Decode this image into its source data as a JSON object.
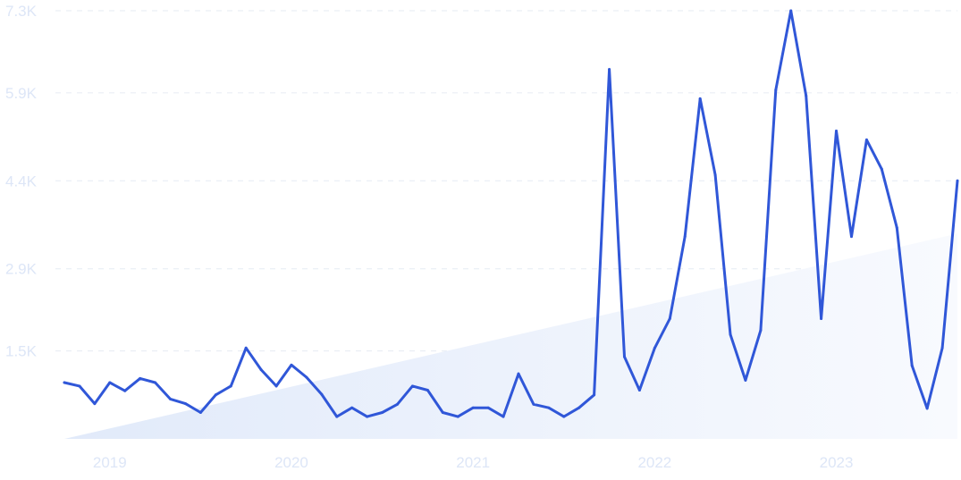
{
  "chart_data": {
    "type": "line",
    "title": "",
    "xlabel": "",
    "ylabel": "",
    "y_ticks": [
      "1.5K",
      "2.9K",
      "4.4K",
      "5.9K",
      "7.3K"
    ],
    "y_tick_values": [
      1500,
      2900,
      4400,
      5900,
      7300
    ],
    "x_ticks": [
      "2019",
      "2020",
      "2021",
      "2022",
      "2023"
    ],
    "x_tick_values": [
      "2019-01",
      "2020-01",
      "2021-01",
      "2022-01",
      "2023-01"
    ],
    "ylim": [
      0,
      7300
    ],
    "xlim": [
      "2018-10",
      "2023-09"
    ],
    "grid": true,
    "trend_area": true,
    "colors": {
      "line": "#3057d8",
      "trend_fill_start": "#e1eafa",
      "trend_fill_end": "#f8fafe",
      "tick_text": "#dde6f7",
      "grid": "#e6ebf3"
    },
    "trend": {
      "start": [
        "2018-10",
        0
      ],
      "end": [
        "2023-09",
        3500
      ]
    },
    "series": [
      {
        "x": [
          "2018-10",
          "2018-11",
          "2018-12",
          "2019-01",
          "2019-02",
          "2019-03",
          "2019-04",
          "2019-05",
          "2019-06",
          "2019-07",
          "2019-08",
          "2019-09",
          "2019-10",
          "2019-11",
          "2019-12",
          "2020-01",
          "2020-02",
          "2020-03",
          "2020-04",
          "2020-05",
          "2020-06",
          "2020-07",
          "2020-08",
          "2020-09",
          "2020-10",
          "2020-11",
          "2020-12",
          "2021-01",
          "2021-02",
          "2021-03",
          "2021-04",
          "2021-05",
          "2021-06",
          "2021-07",
          "2021-08",
          "2021-09",
          "2021-10",
          "2021-11",
          "2021-12",
          "2022-01",
          "2022-02",
          "2022-03",
          "2022-04",
          "2022-05",
          "2022-06",
          "2022-07",
          "2022-08",
          "2022-09",
          "2022-10",
          "2022-11",
          "2022-12",
          "2023-01",
          "2023-02",
          "2023-03",
          "2023-04",
          "2023-05",
          "2023-06",
          "2023-07",
          "2023-08",
          "2023-09"
        ],
        "values": [
          960,
          900,
          600,
          960,
          820,
          1030,
          960,
          680,
          600,
          450,
          750,
          900,
          1550,
          1180,
          900,
          1260,
          1050,
          760,
          380,
          530,
          380,
          450,
          590,
          900,
          830,
          450,
          380,
          530,
          530,
          380,
          1110,
          590,
          530,
          380,
          530,
          750,
          6300,
          1400,
          830,
          1550,
          2050,
          3450,
          5800,
          4500,
          1780,
          1000,
          1850,
          5950,
          7300,
          5850,
          2050,
          5250,
          3450,
          5100,
          4600,
          3600,
          1250,
          520,
          1550,
          4400
        ]
      }
    ]
  }
}
